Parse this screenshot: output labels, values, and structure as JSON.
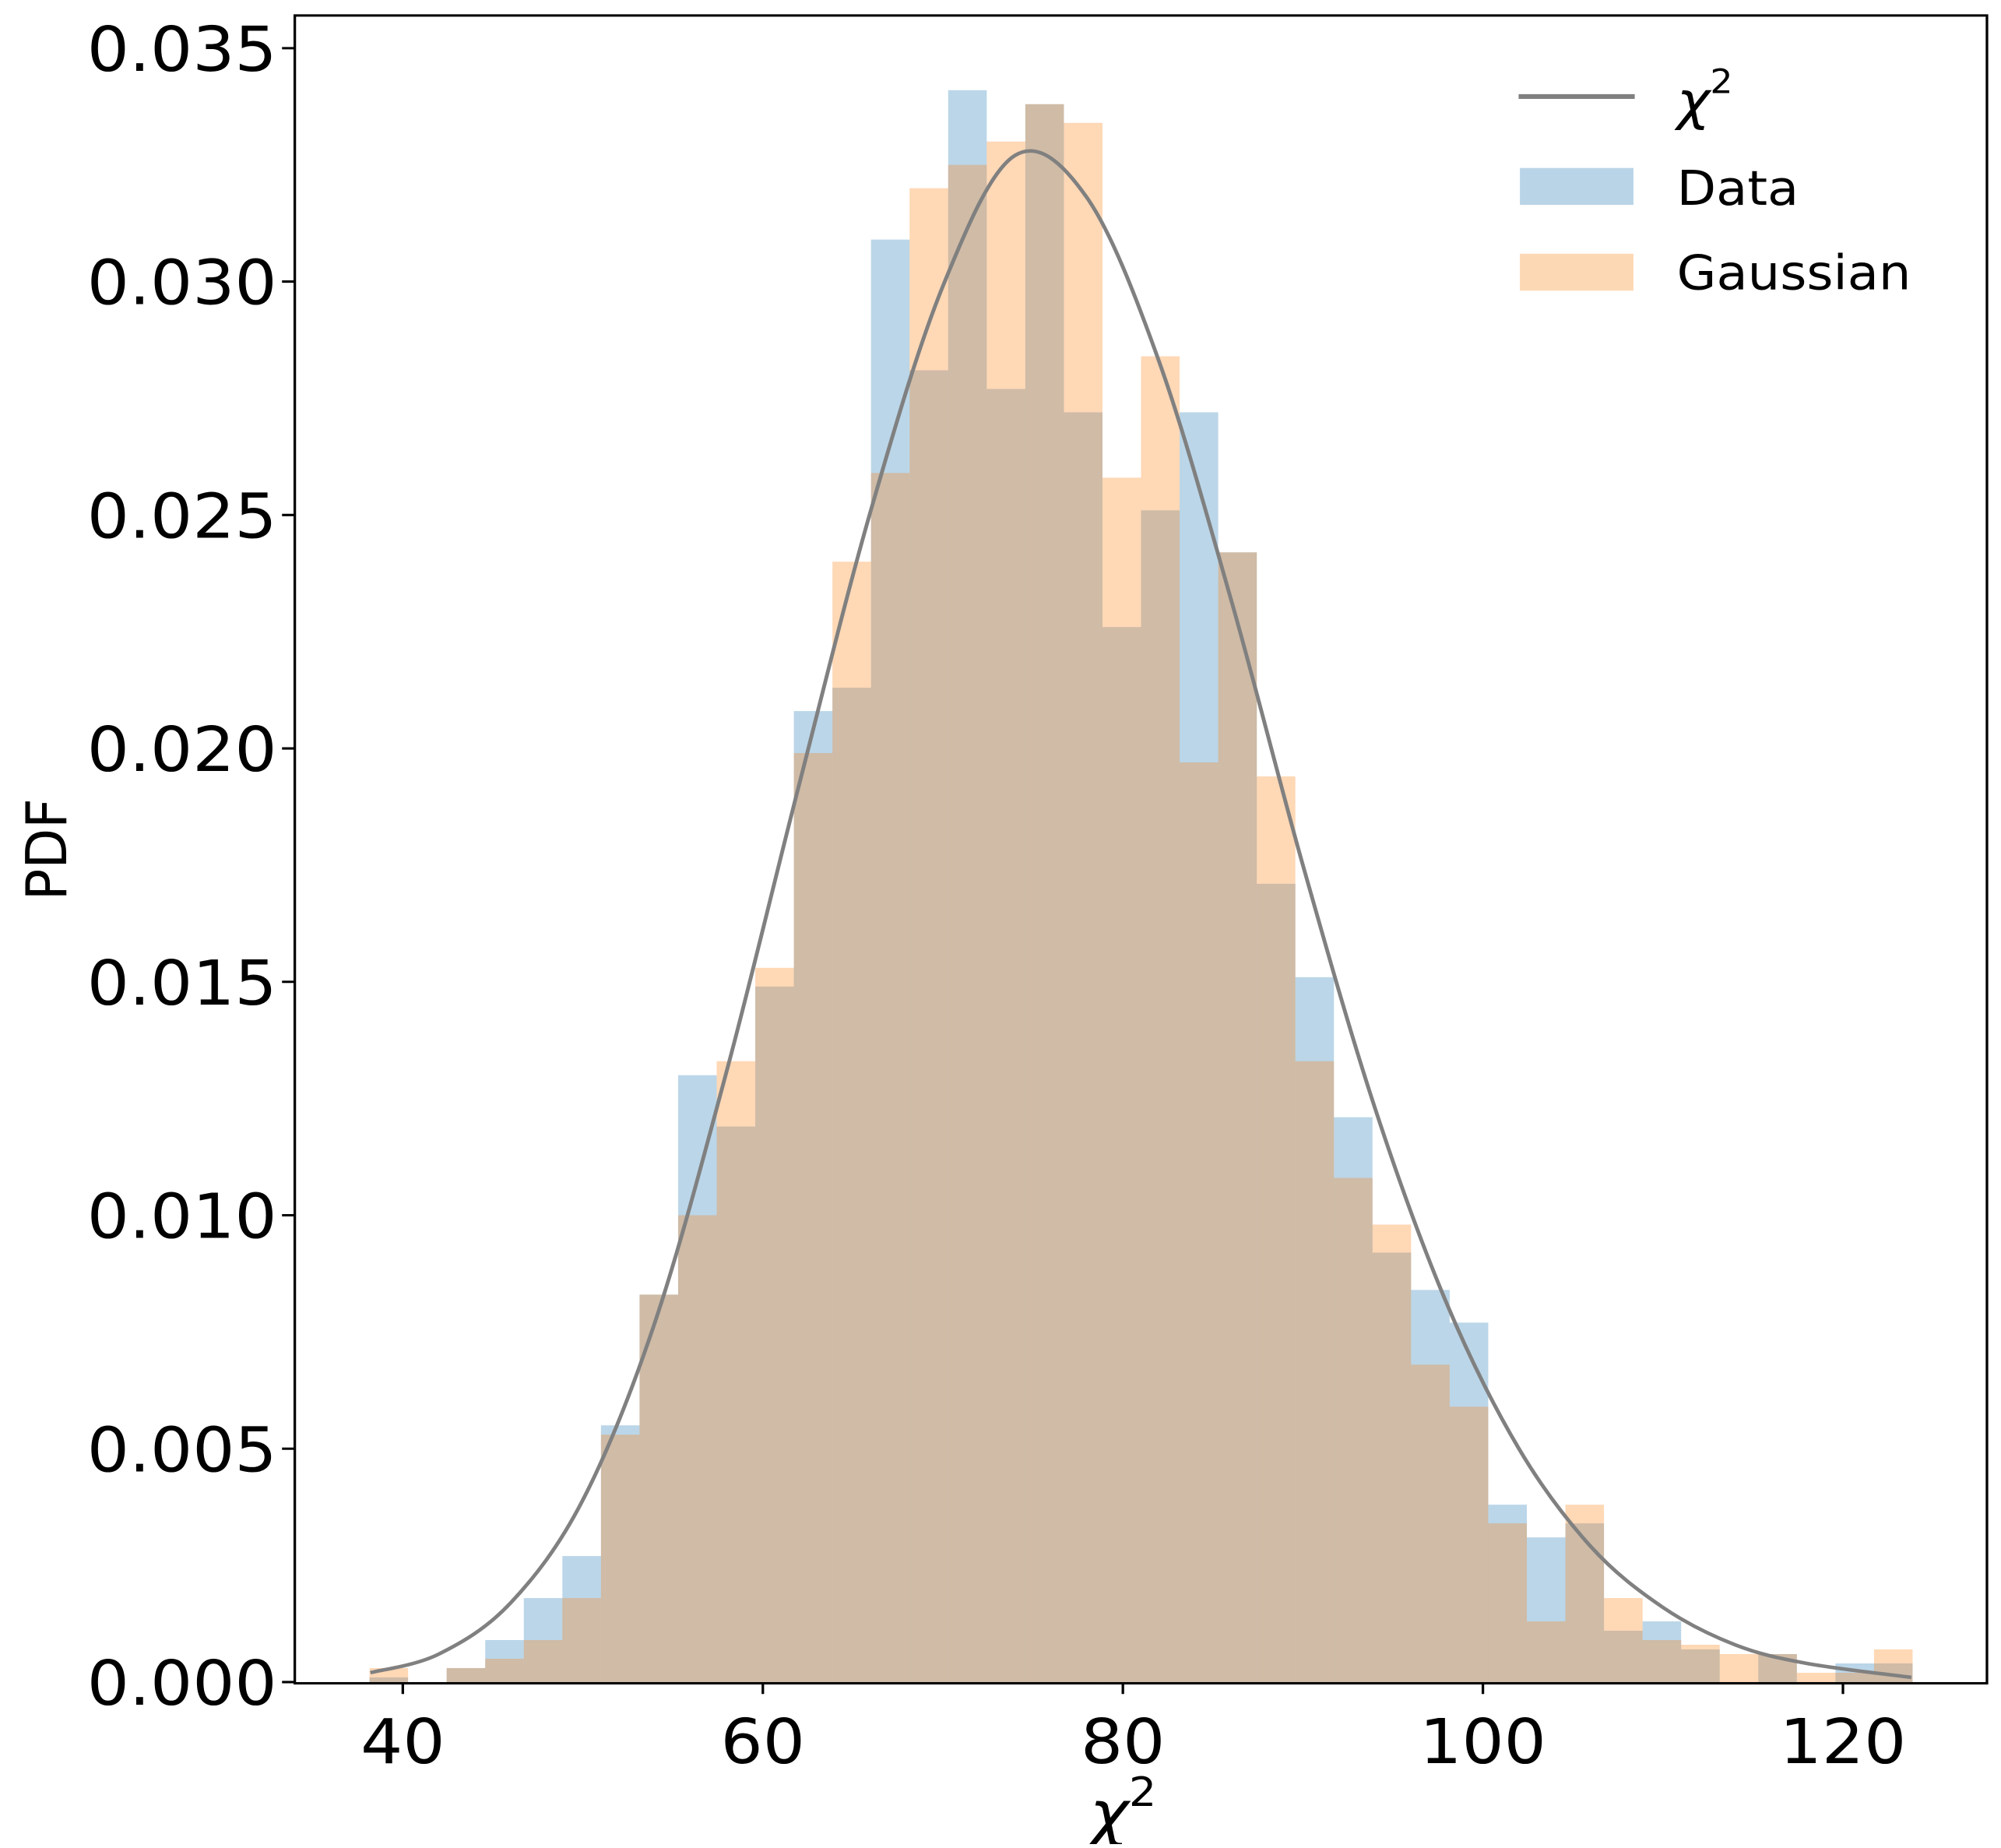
{
  "chart_data": {
    "type": "bar",
    "subtype": "overlaid histogram with line",
    "title": "",
    "xlabel": "χ²",
    "ylabel": "PDF",
    "xlim": [
      34.0,
      128.0
    ],
    "ylim": [
      0.0,
      0.0357
    ],
    "xticks": [
      40,
      60,
      80,
      100,
      120
    ],
    "xtick_labels": [
      "40",
      "60",
      "80",
      "100",
      "120"
    ],
    "yticks": [
      0.0,
      0.005,
      0.01,
      0.015,
      0.02,
      0.025,
      0.03,
      0.035
    ],
    "ytick_labels": [
      "0.000",
      "0.005",
      "0.010",
      "0.015",
      "0.020",
      "0.025",
      "0.030",
      "0.035"
    ],
    "grid": false,
    "legend_position": "upper right",
    "bin_start": 38.15,
    "bin_width": 2.143,
    "bin_count": 40,
    "series": [
      {
        "name": "Data",
        "kind": "histogram",
        "color": "#1f77b4",
        "alpha": 0.3,
        "values": [
          0.0001,
          0.0,
          0.0003,
          0.0009,
          0.0018,
          0.0027,
          0.0055,
          0.0083,
          0.013,
          0.0119,
          0.0149,
          0.0208,
          0.0213,
          0.0309,
          0.0281,
          0.0341,
          0.0277,
          0.0338,
          0.0272,
          0.0226,
          0.0251,
          0.0272,
          0.0242,
          0.0171,
          0.0151,
          0.0121,
          0.0092,
          0.0084,
          0.0077,
          0.0038,
          0.0031,
          0.0034,
          0.0011,
          0.0013,
          0.0007,
          0.0,
          0.0006,
          0.0,
          0.0004,
          0.0004
        ]
      },
      {
        "name": "Gaussian",
        "kind": "histogram",
        "color": "#ff7f0e",
        "alpha": 0.3,
        "values": [
          0.0003,
          0.0,
          0.0003,
          0.0005,
          0.0009,
          0.0018,
          0.0053,
          0.0083,
          0.01,
          0.0133,
          0.0153,
          0.0199,
          0.024,
          0.0259,
          0.032,
          0.0325,
          0.033,
          0.0338,
          0.0334,
          0.0258,
          0.0284,
          0.0197,
          0.0242,
          0.0194,
          0.0133,
          0.0108,
          0.0098,
          0.0068,
          0.0059,
          0.0034,
          0.0013,
          0.0038,
          0.0018,
          0.0009,
          0.0008,
          0.0006,
          0.0006,
          0.0002,
          0.0002,
          0.0007
        ]
      },
      {
        "name": "χ²",
        "kind": "line",
        "color": "#808080",
        "dof": 76,
        "x": [
          38.2,
          42,
          46,
          50,
          54,
          58,
          62,
          66,
          70,
          74,
          78,
          82,
          86,
          90,
          94,
          98,
          102,
          106,
          110,
          114,
          118,
          123.8
        ],
        "values": [
          0.0002,
          0.0006,
          0.0017,
          0.0039,
          0.0077,
          0.0131,
          0.0192,
          0.0251,
          0.0299,
          0.0327,
          0.0318,
          0.0283,
          0.0232,
          0.0175,
          0.0123,
          0.0081,
          0.005,
          0.0029,
          0.0016,
          0.0008,
          0.0004,
          0.0001
        ]
      }
    ]
  },
  "legend": {
    "items": [
      {
        "label": "χ",
        "sup": "2",
        "kind": "line",
        "color": "#808080"
      },
      {
        "label": "Data",
        "kind": "patch",
        "color": "#bad4e7"
      },
      {
        "label": "Gaussian",
        "kind": "patch",
        "color": "#fdd8b5"
      }
    ]
  },
  "axes": {
    "xlabel_base": "χ",
    "xlabel_sup": "2",
    "ylabel": "PDF"
  },
  "colors": {
    "data_fill": "#bad4e7",
    "gauss_fill": "#fdd8b5",
    "overlap_fill": "#cfb9a6",
    "line": "#808080",
    "frame": "#000000"
  }
}
